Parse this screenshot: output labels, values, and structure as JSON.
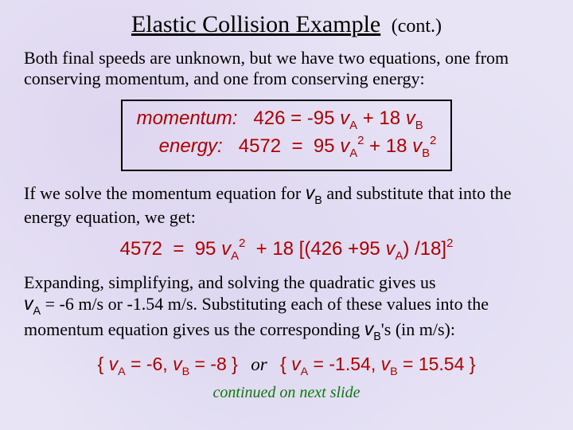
{
  "colors": {
    "background": "#e8e4f5",
    "equation_text": "#b00000",
    "body_text": "#000000",
    "footer_text": "#0a7a0a",
    "box_border": "#000000"
  },
  "fonts": {
    "body": "Times New Roman",
    "equations": "Arial",
    "title_size_pt": 30,
    "body_size_pt": 22,
    "equation_size_pt": 24
  },
  "title": {
    "main": "Elastic Collision Example",
    "cont": "(cont.)"
  },
  "para1": "Both final speeds are unknown, but we have two equations, one from conserving momentum, and one from conserving energy:",
  "eqbox": {
    "momentum": {
      "label": "momentum:",
      "lhs": "426",
      "rhs_term1_coef": "-95",
      "rhs_term1_var": "v",
      "rhs_term1_sub": "A",
      "rhs_term2_coef": "18",
      "rhs_term2_var": "v",
      "rhs_term2_sub": "B"
    },
    "energy": {
      "label": "energy:",
      "lhs": "4572",
      "rhs_term1_coef": "95",
      "rhs_term1_var": "v",
      "rhs_term1_sub": "A",
      "rhs_term1_sup": "2",
      "rhs_term2_coef": "18",
      "rhs_term2_var": "v",
      "rhs_term2_sub": "B",
      "rhs_term2_sup": "2"
    }
  },
  "para2_a": "If we solve the momentum equation for ",
  "para2_vb_var": "v",
  "para2_vb_sub": "B",
  "para2_b": " and substitute that into the energy equation, we get:",
  "eq2": {
    "lhs": "4572",
    "t1_coef": "95",
    "t1_var": "v",
    "t1_sub": "A",
    "t1_sup": "2",
    "t2_coef": "18",
    "inner_a": "426",
    "inner_b_coef": "95",
    "inner_b_var": "v",
    "inner_b_sub": "A",
    "inner_div": "18",
    "outer_sup": "2"
  },
  "para3_a": "Expanding, simplifying, and solving the quadratic gives us ",
  "para3_va_var": "v",
  "para3_va_sub": "A",
  "para3_b": " = -6 m/s  or  -1.54 m/s.  Substituting each of these values into the momentum equation gives us the corresponding ",
  "para3_vb_var": "v",
  "para3_vb_sub": "B",
  "para3_c": "'s  (in m/s):",
  "solutions": {
    "set1": {
      "vA_var": "v",
      "vA_sub": "A",
      "vA_val": "-6",
      "vB_var": "v",
      "vB_sub": "B",
      "vB_val": "-8"
    },
    "or": "or",
    "set2": {
      "vA_var": "v",
      "vA_sub": "A",
      "vA_val": "-1.54",
      "vB_var": "v",
      "vB_sub": "B",
      "vB_val": "15.54"
    }
  },
  "footer": "continued on next slide"
}
